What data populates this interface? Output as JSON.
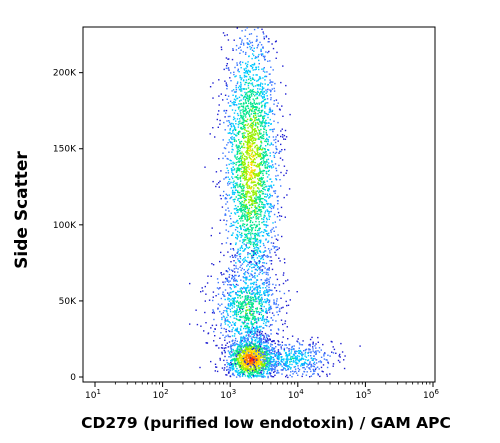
{
  "chart_data": {
    "type": "scatter",
    "xlabel": "CD279 (purified low endotoxin) / GAM APC",
    "ylabel": "Side Scatter",
    "xscale": "log",
    "xlim": [
      10,
      1000000
    ],
    "ylim": [
      0,
      230000
    ],
    "x_ticks": [
      10,
      100,
      1000,
      10000,
      100000,
      1000000
    ],
    "x_tick_labels": [
      {
        "base": "10",
        "exp": "1"
      },
      {
        "base": "10",
        "exp": "2"
      },
      {
        "base": "10",
        "exp": "3"
      },
      {
        "base": "10",
        "exp": "4"
      },
      {
        "base": "10",
        "exp": "5"
      },
      {
        "base": "10",
        "exp": "6"
      }
    ],
    "y_ticks": [
      0,
      50000,
      100000,
      150000,
      200000
    ],
    "y_tick_labels": [
      "0",
      "50K",
      "100K",
      "150K",
      "200K"
    ],
    "grid": false,
    "legend": "none",
    "density_colors": [
      "#1e1ed2",
      "#3c78ff",
      "#00c8ff",
      "#00e68c",
      "#96f000",
      "#ffdc00",
      "#ff7800",
      "#ff1e00"
    ],
    "populations": [
      {
        "center_log10_x": 3.3,
        "center_y": 140000,
        "spread_log10_x": 0.2,
        "spread_y": 45000,
        "density": "high"
      },
      {
        "center_log10_x": 3.3,
        "center_y": 12000,
        "spread_log10_x": 0.18,
        "spread_y": 7000,
        "density": "peak"
      },
      {
        "center_log10_x": 3.25,
        "center_y": 45000,
        "spread_log10_x": 0.25,
        "spread_y": 15000,
        "density": "medium"
      },
      {
        "center_log10_x": 3.9,
        "center_y": 12000,
        "spread_log10_x": 0.3,
        "spread_y": 6000,
        "density": "low"
      }
    ]
  }
}
